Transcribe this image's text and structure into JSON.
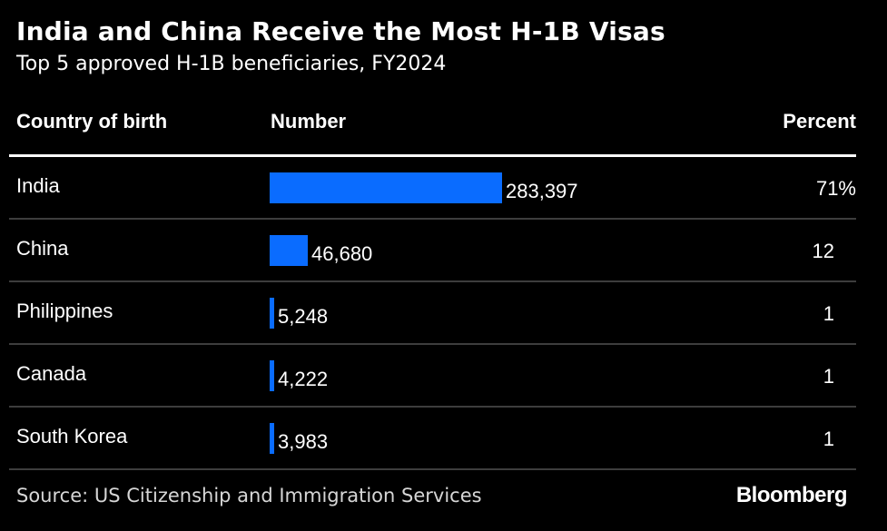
{
  "header": {
    "title": "India and China Receive the Most H-1B Visas",
    "subtitle": "Top 5 approved H-1B beneficiaries, FY2024"
  },
  "chart_data": {
    "type": "table",
    "title": "India and China Receive the Most H-1B Visas",
    "subtitle": "Top 5 approved H-1B beneficiaries, FY2024",
    "columns": [
      "Country of birth",
      "Number",
      "Percent"
    ],
    "rows": [
      {
        "country": "India",
        "value": 283397,
        "value_label": "283,397",
        "percent": "71%"
      },
      {
        "country": "China",
        "value": 46680,
        "value_label": "46,680",
        "percent": "12"
      },
      {
        "country": "Philippines",
        "value": 5248,
        "value_label": "5,248",
        "percent": "1"
      },
      {
        "country": "Canada",
        "value": 4222,
        "value_label": "4,222",
        "percent": "1"
      },
      {
        "country": "South Korea",
        "value": 3983,
        "value_label": "3,983",
        "percent": "1"
      }
    ],
    "bar_max": 283397,
    "bar_color": "#0a6cff"
  },
  "footer": {
    "source": "Source: US Citizenship and Immigration Services",
    "brand": "Bloomberg"
  }
}
